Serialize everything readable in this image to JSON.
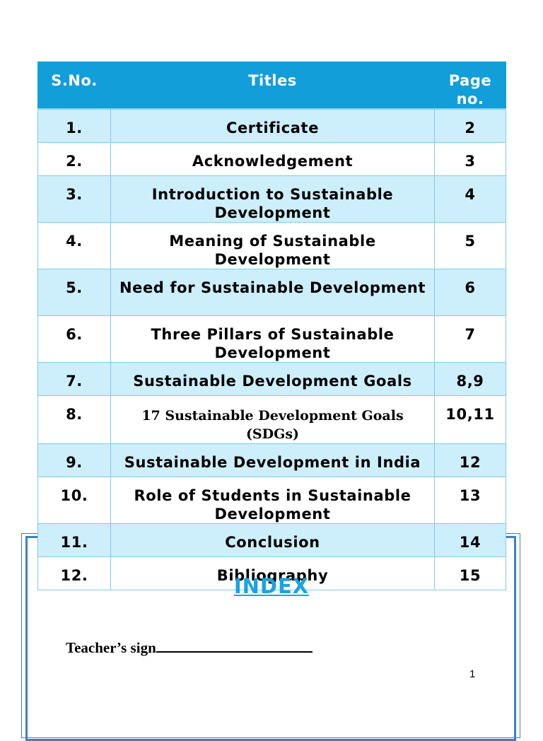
{
  "table": {
    "headers": {
      "sno": "S.No.",
      "titles": "Titles",
      "page": "Page no."
    },
    "rows": [
      {
        "sno": "1.",
        "title": "Certificate",
        "page": "2"
      },
      {
        "sno": "2.",
        "title": "Acknowledgement",
        "page": "3"
      },
      {
        "sno": "3.",
        "title": "Introduction to Sustainable Development",
        "page": "4"
      },
      {
        "sno": "4.",
        "title": "Meaning of Sustainable Development",
        "page": "5"
      },
      {
        "sno": "5.",
        "title": "Need for Sustainable Development",
        "page": "6"
      },
      {
        "sno": "6.",
        "title": "Three Pillars of Sustainable Development",
        "page": "7"
      },
      {
        "sno": "7.",
        "title": "Sustainable Development Goals",
        "page": "8,9"
      },
      {
        "sno": "8.",
        "title": "17 Sustainable Development Goals (SDGs)",
        "page": "10,11"
      },
      {
        "sno": "9.",
        "title": "Sustainable Development in India",
        "page": "12"
      },
      {
        "sno": "10.",
        "title": "Role of Students in Sustainable Development",
        "page": "13"
      },
      {
        "sno": "11.",
        "title": "Conclusion",
        "page": "14"
      },
      {
        "sno": "12.",
        "title": "Bibliography",
        "page": "15"
      }
    ]
  },
  "heading": "INDEX",
  "teacher_sign_label": "Teacher’s sign",
  "page_number": "1",
  "colors": {
    "header_bg": "#119ed9",
    "row_shade": "#cdeefb",
    "heading": "#1aa3e0",
    "frame": "#3f7fc6"
  }
}
